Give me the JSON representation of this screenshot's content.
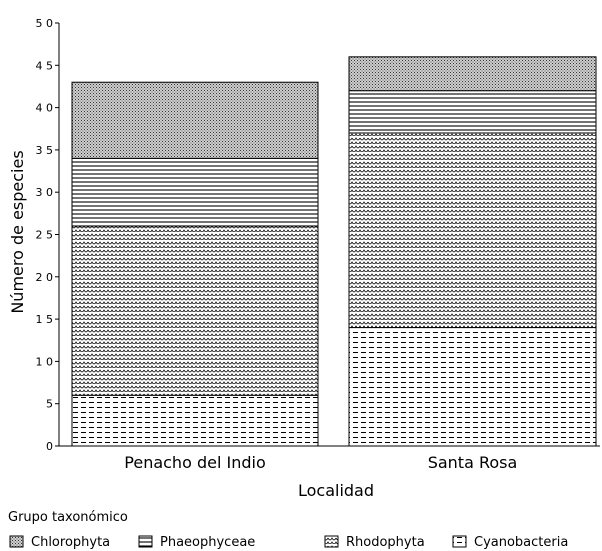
{
  "chart_data": {
    "type": "bar",
    "stacked": true,
    "categories": [
      "Penacho del Indio",
      "Santa Rosa"
    ],
    "series": [
      {
        "name": "Cyanobacteria",
        "pattern": "dashes",
        "values": [
          6,
          14
        ]
      },
      {
        "name": "Rhodophyta",
        "pattern": "scales",
        "values": [
          20,
          23
        ]
      },
      {
        "name": "Phaeophyceae",
        "pattern": "hlines",
        "values": [
          8,
          5
        ]
      },
      {
        "name": "Chlorophyta",
        "pattern": "dots",
        "values": [
          9,
          4
        ]
      }
    ],
    "xlabel": "Localidad",
    "ylabel": "Número de especies",
    "ylim": [
      0,
      50
    ],
    "yticks": [
      "0",
      "5",
      "1 0",
      "1 5",
      "2 0",
      "2 5",
      "3 0",
      "3 5",
      "4 0",
      "4 5",
      "5 0"
    ],
    "legend_title": "Grupo taxonómico",
    "legend_order": [
      "Chlorophyta",
      "Phaeophyceae",
      "Rhodophyta",
      "Cyanobacteria"
    ],
    "legend_position": "bottom",
    "grid": false,
    "colors": {
      "stroke": "#000000",
      "background": "#ffffff"
    }
  }
}
